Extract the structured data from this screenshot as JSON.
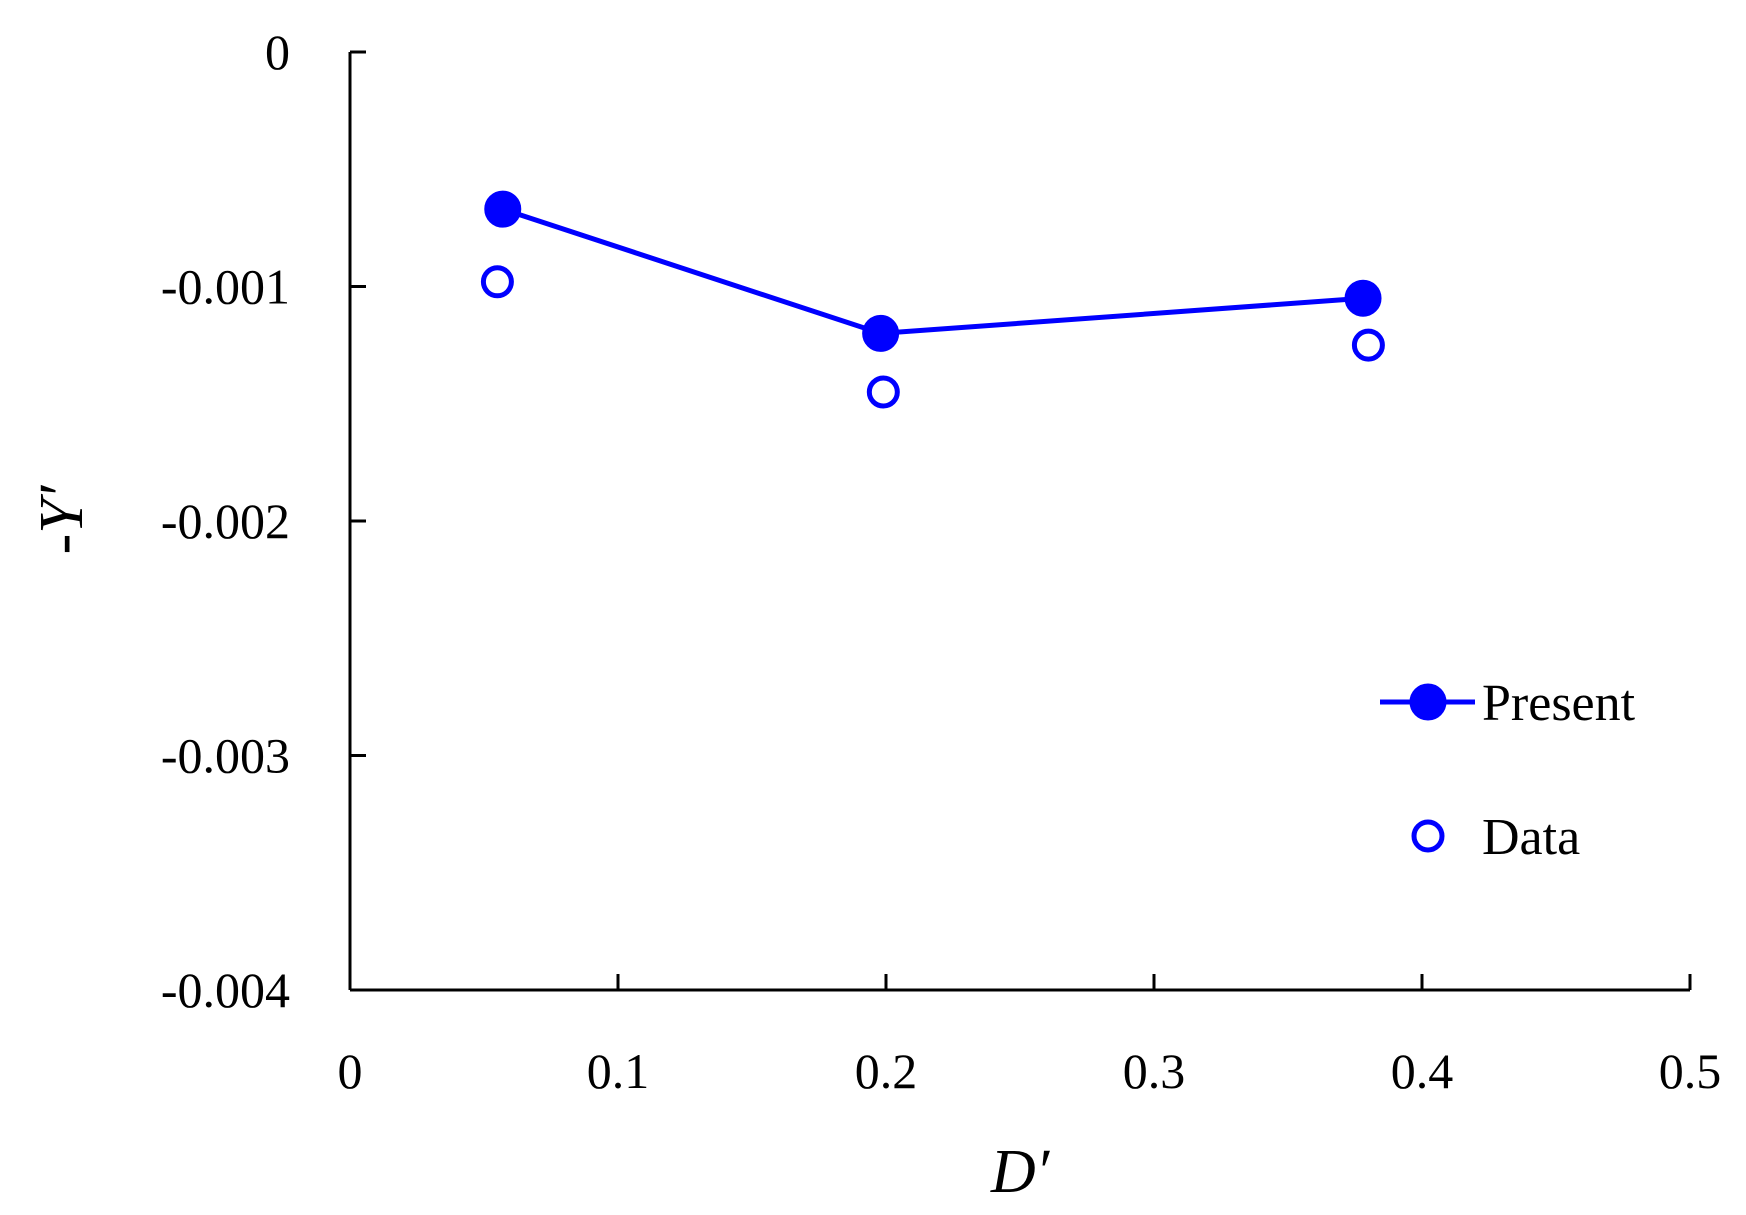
{
  "chart_data": {
    "type": "line",
    "xlabel": "D′",
    "ylabel": "-Y′",
    "xlim": [
      0,
      0.5
    ],
    "ylim": [
      -0.004,
      0
    ],
    "xticks": [
      0,
      0.1,
      0.2,
      0.3,
      0.4,
      0.5
    ],
    "xtick_labels": [
      "0",
      "0.1",
      "0.2",
      "0.3",
      "0.4",
      "0.5"
    ],
    "yticks": [
      0,
      -0.001,
      -0.002,
      -0.003,
      -0.004
    ],
    "ytick_labels": [
      "0",
      "-0.001",
      "-0.002",
      "-0.003",
      "-0.004"
    ],
    "grid": false,
    "legend_position": "right",
    "series": [
      {
        "name": "Present",
        "style": "line-filled-marker",
        "color": "#0000ff",
        "x": [
          0.057,
          0.198,
          0.378
        ],
        "y": [
          -0.00067,
          -0.0012,
          -0.00105
        ]
      },
      {
        "name": "Data",
        "style": "open-marker",
        "color": "#0000ff",
        "x": [
          0.055,
          0.199,
          0.38
        ],
        "y": [
          -0.00098,
          -0.00145,
          -0.00125
        ]
      }
    ]
  }
}
